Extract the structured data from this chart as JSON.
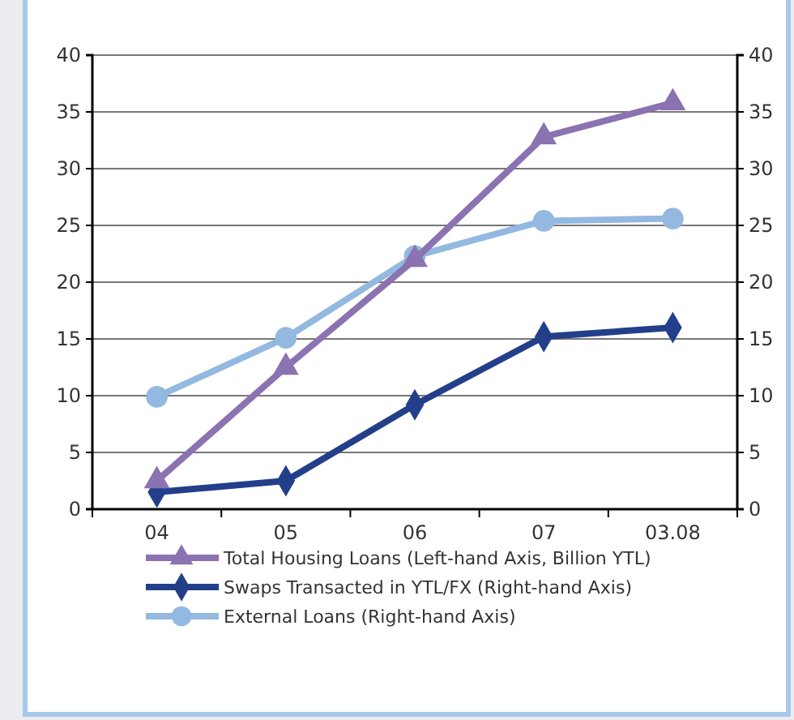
{
  "chart_data": {
    "type": "line",
    "categories": [
      "04",
      "05",
      "06",
      "07",
      "03.08"
    ],
    "series": [
      {
        "name": "Total Housing Loans (Left-hand Axis, Billion YTL)",
        "color": "#8b72b0",
        "marker": "triangle",
        "values": [
          2.5,
          12.5,
          22,
          32.8,
          35.8
        ]
      },
      {
        "name": "Swaps Transacted in YTL/FX (Right-hand Axis)",
        "color": "#233f8a",
        "marker": "diamond",
        "axis": "y2",
        "values": [
          1.5,
          2.5,
          9.2,
          15.2,
          16
        ]
      },
      {
        "name": "External Loans (Right-hand Axis)",
        "color": "#93b9e0",
        "marker": "circle",
        "axis": "y2",
        "values": [
          9.9,
          15.1,
          22.3,
          25.4,
          25.6
        ]
      }
    ],
    "ylim": [
      0,
      40
    ],
    "yticks": [
      0,
      5,
      10,
      15,
      20,
      25,
      30,
      35,
      40
    ],
    "y2lim": [
      0,
      40
    ],
    "y2ticks": [
      0,
      5,
      10,
      15,
      20,
      25,
      30,
      35,
      40
    ],
    "grid": "y",
    "legend": "bottom",
    "line_style": "solid"
  }
}
